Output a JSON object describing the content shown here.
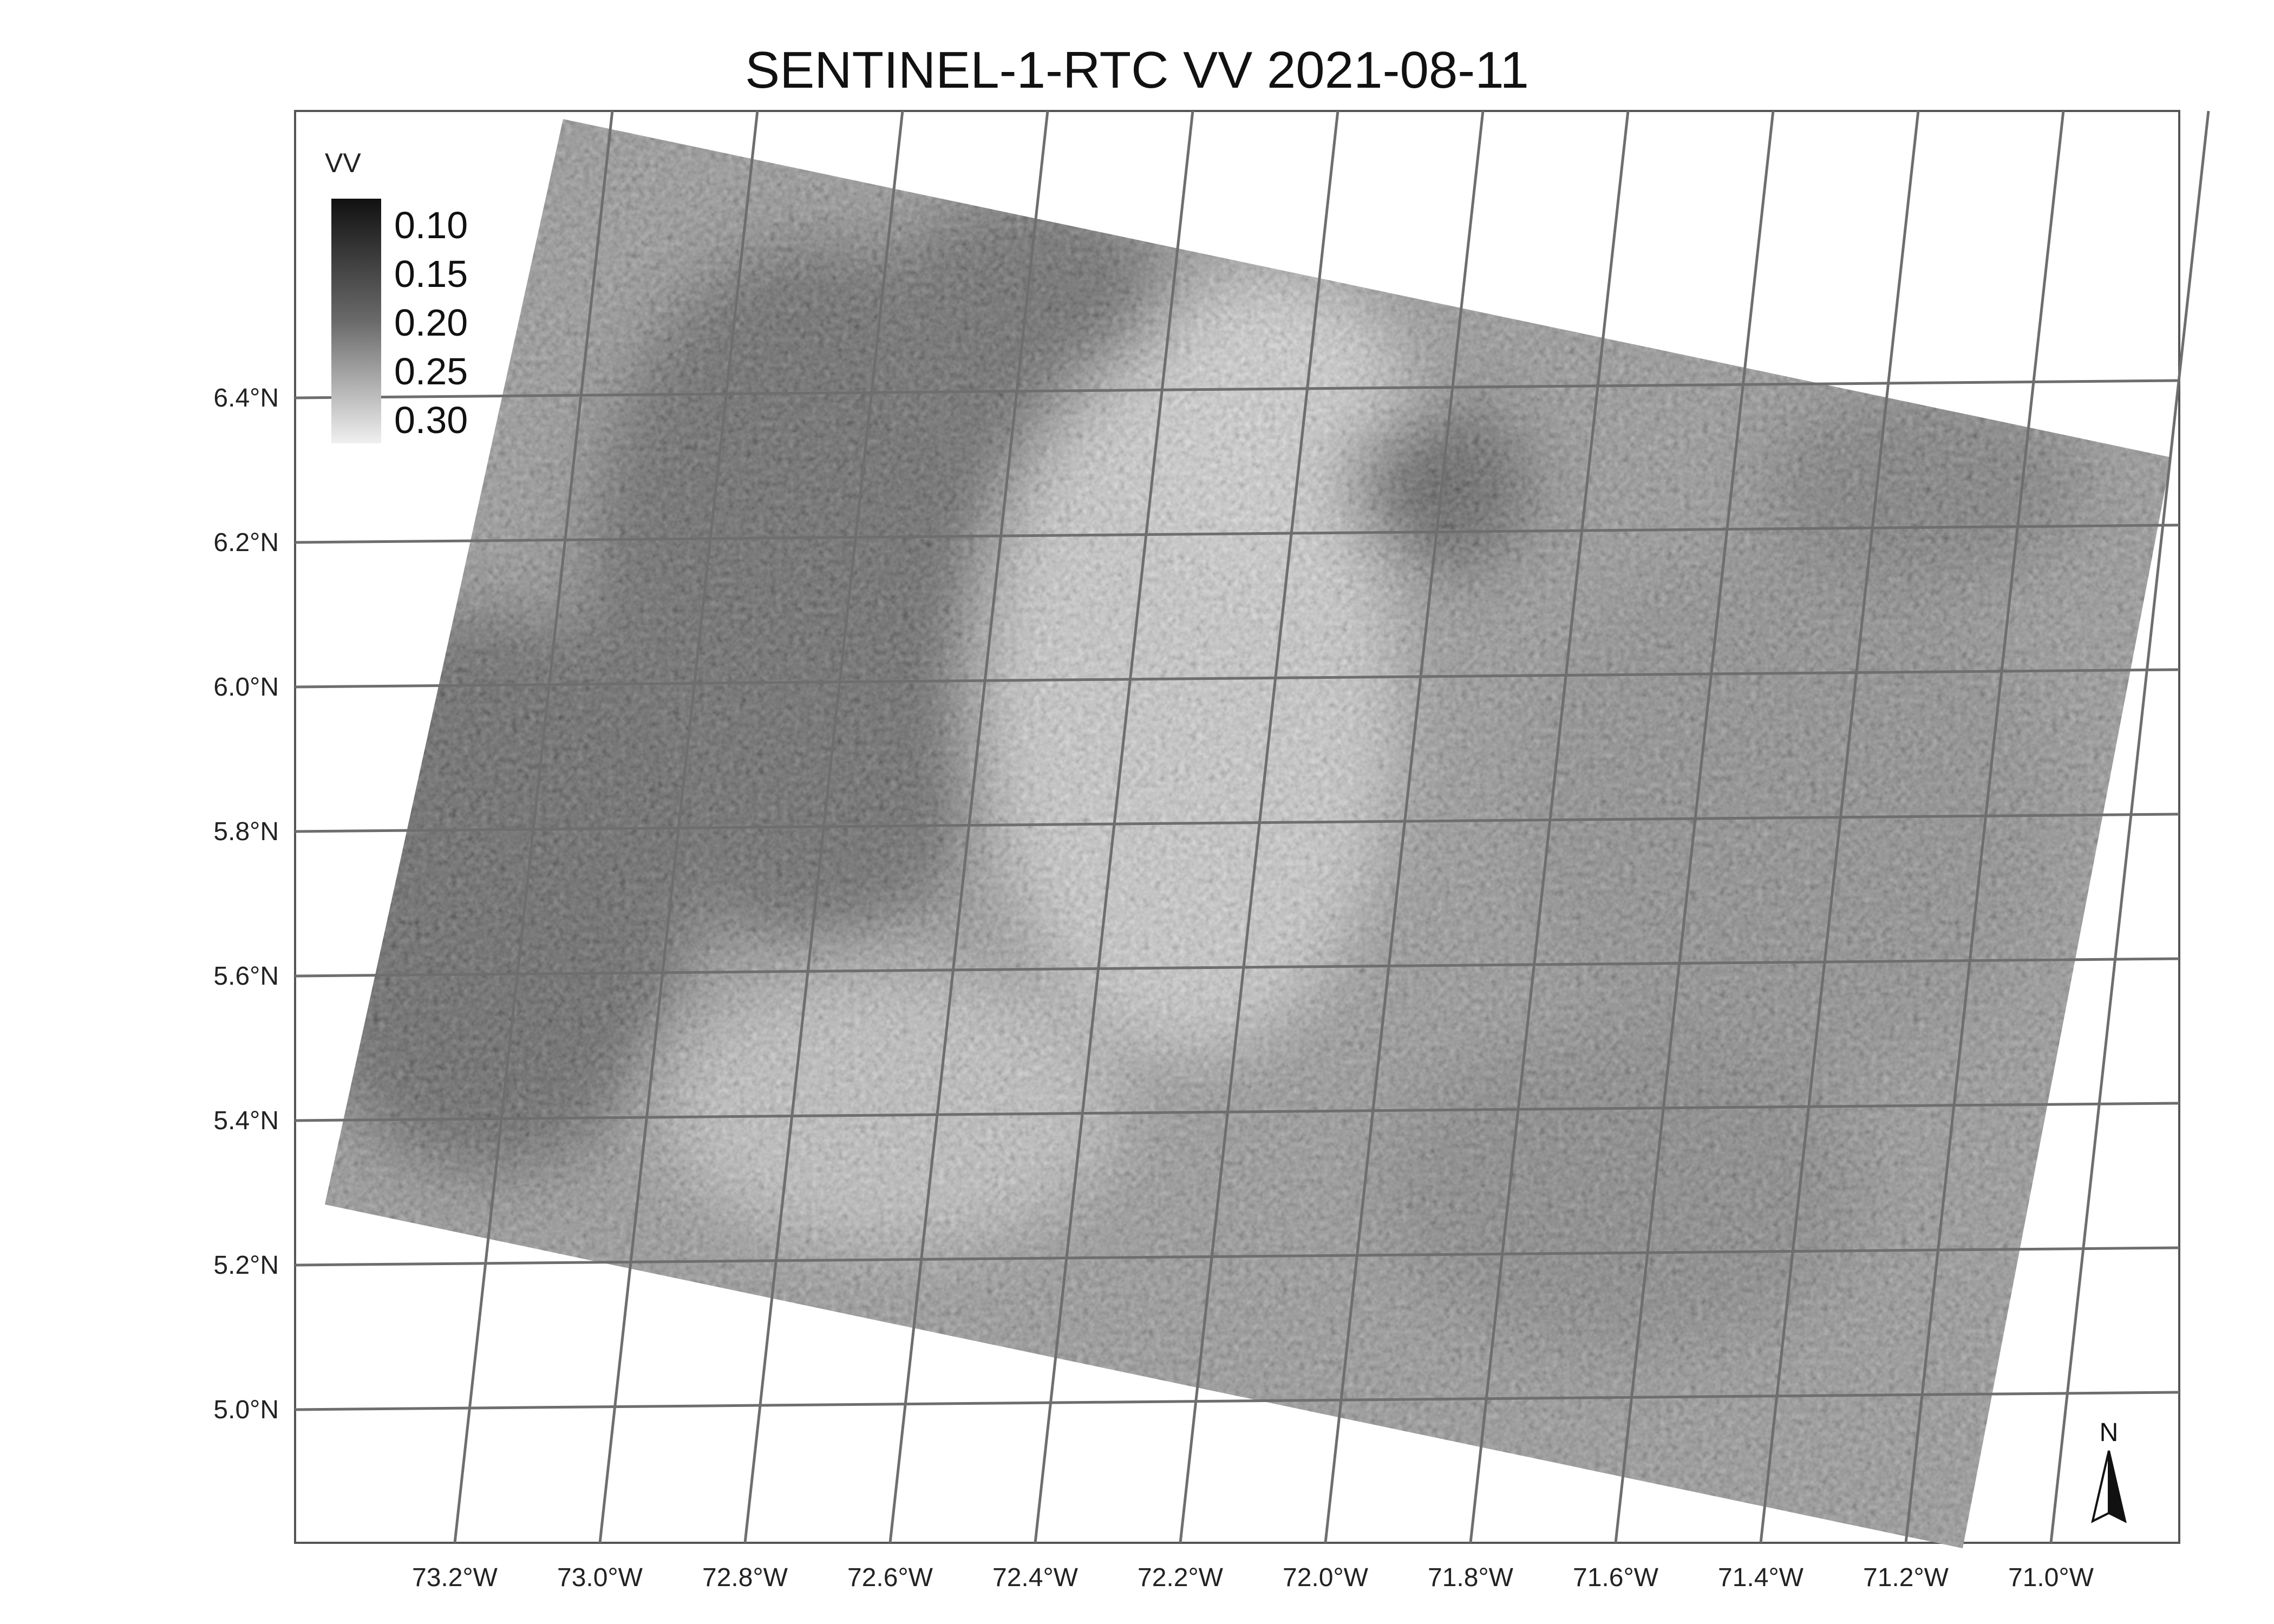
{
  "title": "SENTINEL-1-RTC VV 2021-08-11",
  "map": {
    "x_ticks": [
      "73.2°W",
      "73.0°W",
      "72.8°W",
      "72.6°W",
      "72.4°W",
      "72.2°W",
      "72.0°W",
      "71.8°W",
      "71.6°W",
      "71.4°W",
      "71.2°W",
      "71.0°W"
    ],
    "y_ticks": [
      "6.4°N",
      "6.2°N",
      "6.0°N",
      "5.8°N",
      "5.6°N",
      "5.4°N",
      "5.2°N",
      "5.0°N"
    ],
    "colors": {
      "background": "#ffffff",
      "grid": "#6e6e6e",
      "raster_dark": "#1a1a1a",
      "raster_light": "#e6e6e6"
    }
  },
  "legend": {
    "title": "VV",
    "labels": [
      "0.10",
      "0.15",
      "0.20",
      "0.25",
      "0.30"
    ]
  },
  "north_arrow": {
    "label": "N",
    "icon": "north-arrow-icon"
  }
}
